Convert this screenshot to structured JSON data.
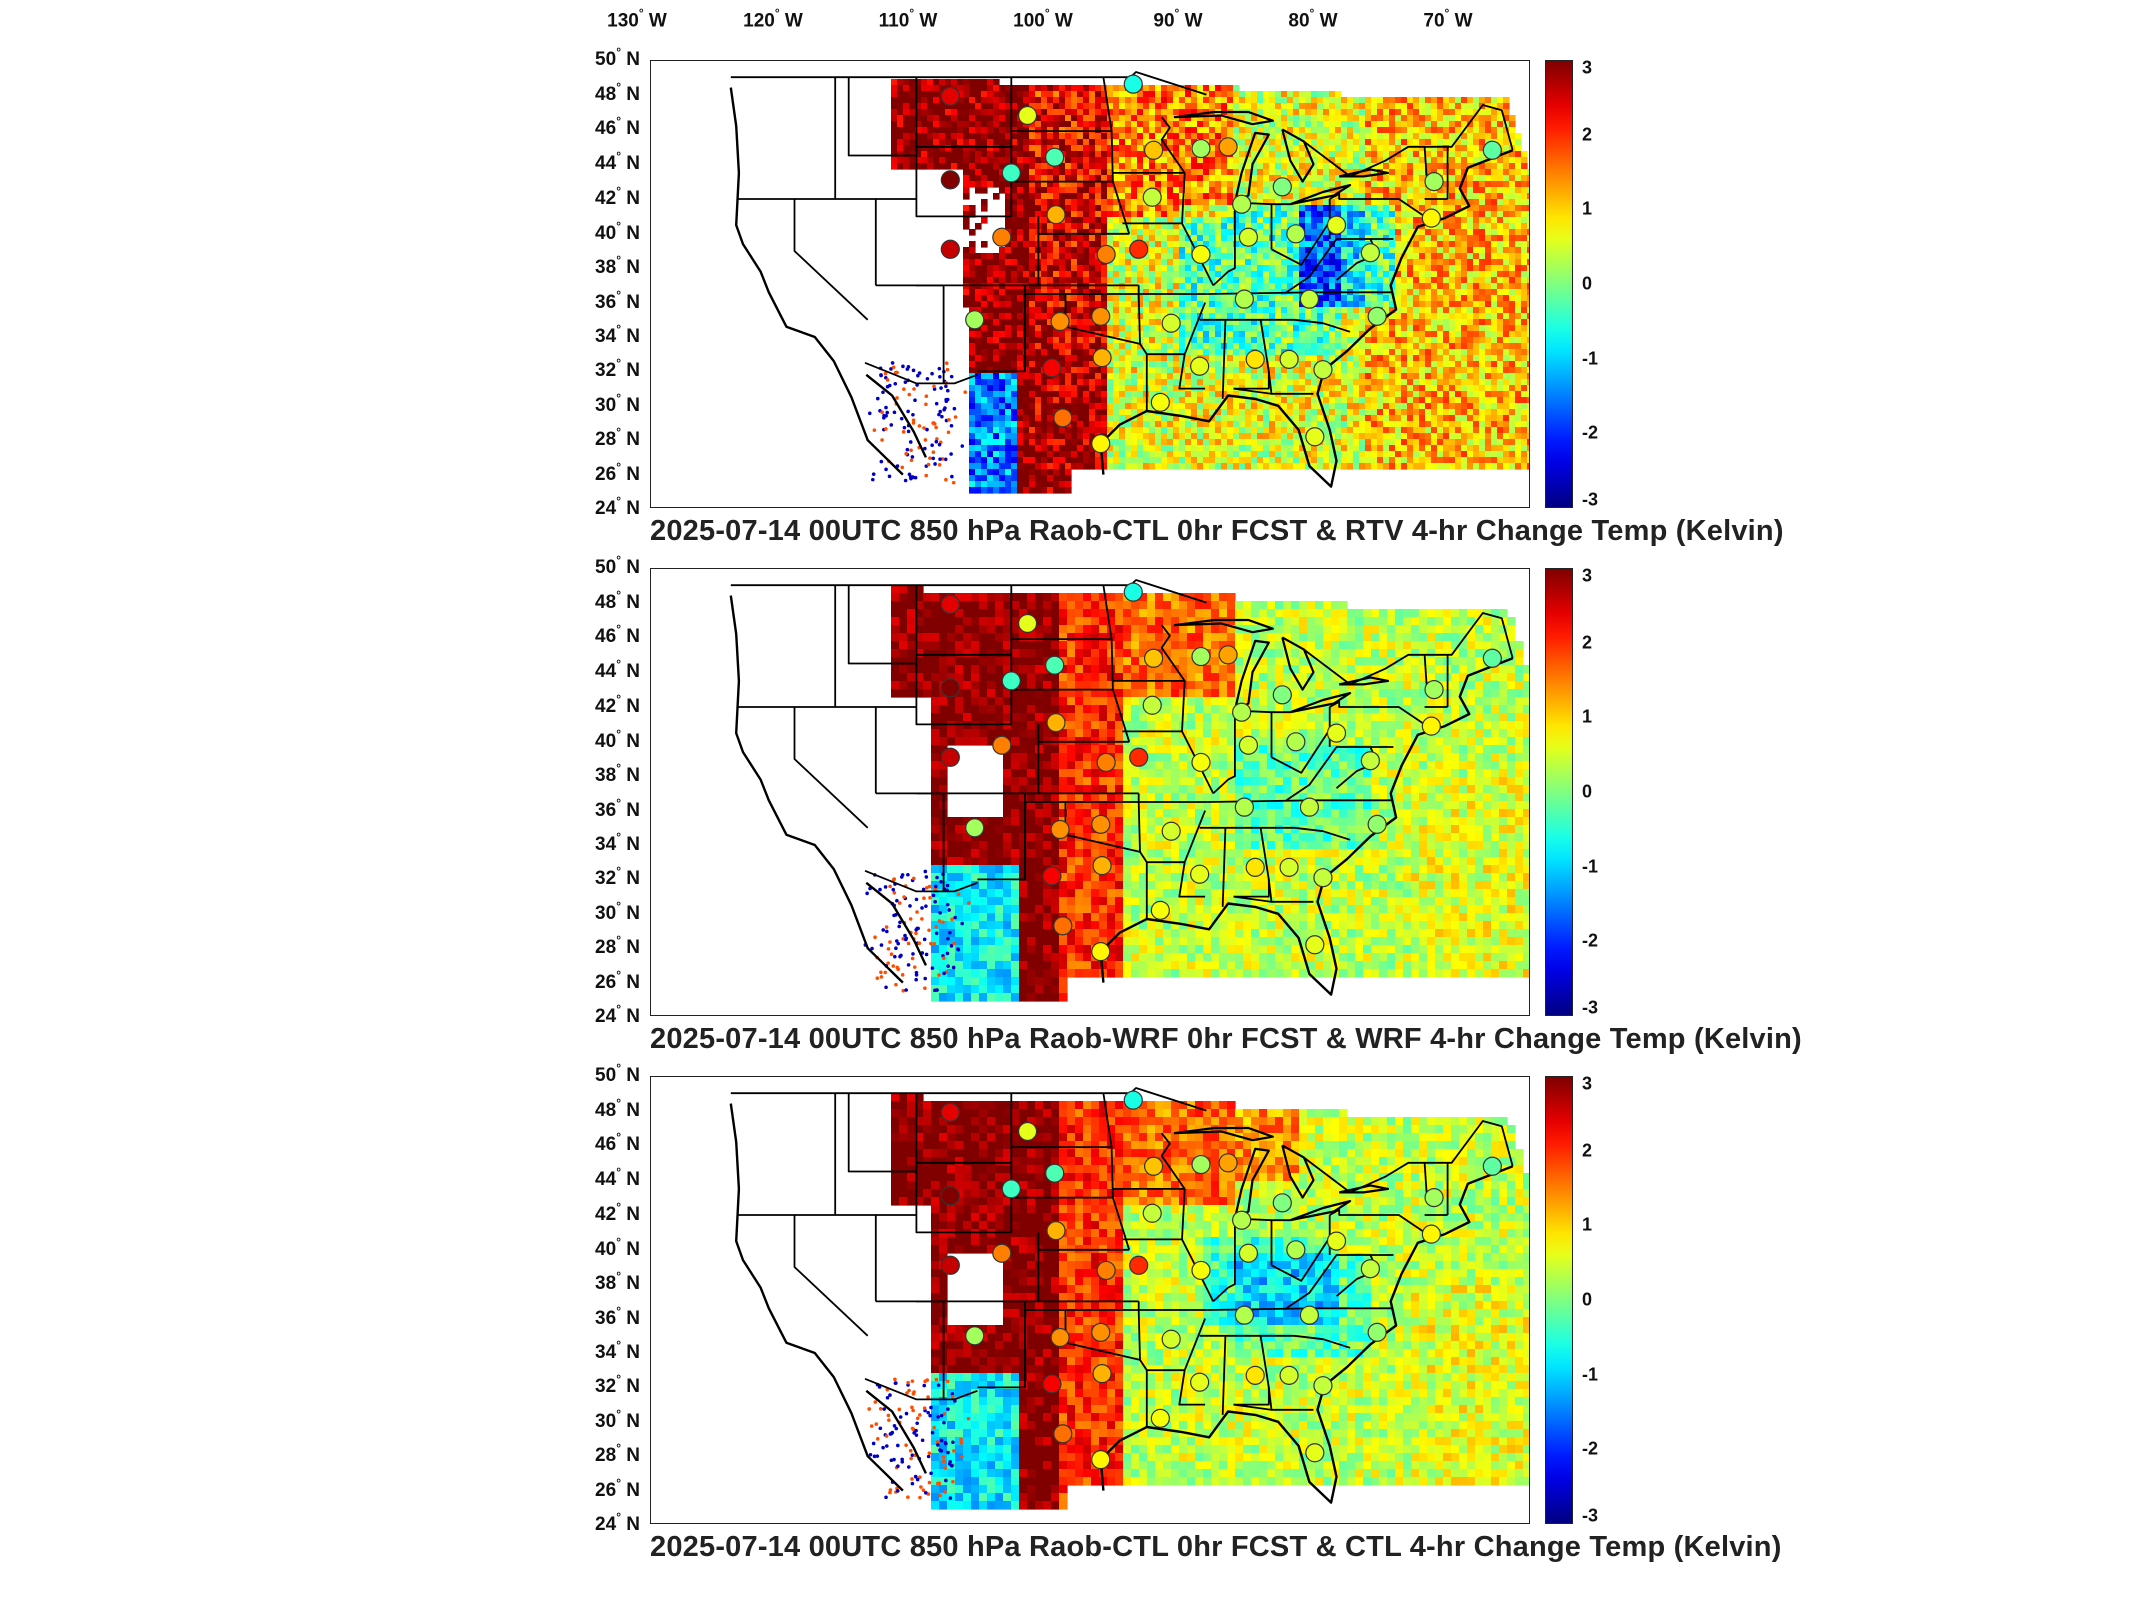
{
  "longitude_labels": [
    {
      "deg": "130",
      "hem": "W"
    },
    {
      "deg": "120",
      "hem": "W"
    },
    {
      "deg": "110",
      "hem": "W"
    },
    {
      "deg": "100",
      "hem": "W"
    },
    {
      "deg": "90",
      "hem": "W"
    },
    {
      "deg": "80",
      "hem": "W"
    },
    {
      "deg": "70",
      "hem": "W"
    }
  ],
  "latitude_labels": [
    {
      "deg": "50",
      "hem": "N"
    },
    {
      "deg": "48",
      "hem": "N"
    },
    {
      "deg": "46",
      "hem": "N"
    },
    {
      "deg": "44",
      "hem": "N"
    },
    {
      "deg": "42",
      "hem": "N"
    },
    {
      "deg": "40",
      "hem": "N"
    },
    {
      "deg": "38",
      "hem": "N"
    },
    {
      "deg": "36",
      "hem": "N"
    },
    {
      "deg": "34",
      "hem": "N"
    },
    {
      "deg": "32",
      "hem": "N"
    },
    {
      "deg": "30",
      "hem": "N"
    },
    {
      "deg": "28",
      "hem": "N"
    },
    {
      "deg": "26",
      "hem": "N"
    },
    {
      "deg": "24",
      "hem": "N"
    }
  ],
  "colorbar": {
    "min": -3,
    "max": 3,
    "ticks": [
      "3",
      "2",
      "1",
      "0",
      "-1",
      "-2",
      "-3"
    ],
    "colormap": "jet"
  },
  "panels": [
    {
      "title": "2025-07-14 00UTC 850 hPa Raob-CTL 0hr FCST & RTV 4-hr Change Temp (Kelvin)"
    },
    {
      "title": "2025-07-14 00UTC 850 hPa Raob-WRF 0hr FCST & WRF 4-hr Change Temp (Kelvin)"
    },
    {
      "title": "2025-07-14 00UTC 850 hPa Raob-CTL 0hr FCST & CTL 4-hr Change Temp (Kelvin)"
    }
  ],
  "stations": [
    {
      "lon": -108.5,
      "lat": 47.9,
      "values": [
        2.4,
        2.4,
        2.4
      ]
    },
    {
      "lon": -102.8,
      "lat": 46.8,
      "values": [
        0.6,
        0.6,
        0.6
      ]
    },
    {
      "lon": -100.8,
      "lat": 44.4,
      "values": [
        -0.3,
        -0.3,
        -0.3
      ]
    },
    {
      "lon": -104.0,
      "lat": 43.5,
      "values": [
        -0.4,
        -0.4,
        -0.4
      ]
    },
    {
      "lon": -108.5,
      "lat": 43.1,
      "values": [
        3.0,
        3.0,
        3.0
      ]
    },
    {
      "lon": -93.5,
      "lat": 44.8,
      "values": [
        1.1,
        1.1,
        1.1
      ]
    },
    {
      "lon": -88.0,
      "lat": 45.0,
      "values": [
        1.3,
        1.3,
        1.3
      ]
    },
    {
      "lon": -95.0,
      "lat": 48.6,
      "values": [
        -0.6,
        -0.6,
        -0.6
      ]
    },
    {
      "lon": -90.0,
      "lat": 44.9,
      "values": [
        0.2,
        0.2,
        0.2
      ]
    },
    {
      "lon": -84.0,
      "lat": 42.7,
      "values": [
        0.0,
        0.0,
        0.0
      ]
    },
    {
      "lon": -87.0,
      "lat": 41.7,
      "values": [
        0.3,
        0.3,
        0.3
      ]
    },
    {
      "lon": -93.6,
      "lat": 42.1,
      "values": [
        0.4,
        0.4,
        0.4
      ]
    },
    {
      "lon": -108.5,
      "lat": 39.1,
      "values": [
        2.6,
        2.6,
        2.6
      ]
    },
    {
      "lon": -104.7,
      "lat": 39.8,
      "values": [
        1.5,
        1.5,
        1.5
      ]
    },
    {
      "lon": -100.7,
      "lat": 41.1,
      "values": [
        1.2,
        1.2,
        1.2
      ]
    },
    {
      "lon": -97.0,
      "lat": 38.8,
      "values": [
        1.5,
        1.5,
        1.5
      ]
    },
    {
      "lon": -94.6,
      "lat": 39.1,
      "values": [
        2.0,
        2.0,
        2.0
      ]
    },
    {
      "lon": -90.0,
      "lat": 38.8,
      "values": [
        0.7,
        0.7,
        0.7
      ]
    },
    {
      "lon": -86.5,
      "lat": 39.8,
      "values": [
        0.5,
        0.5,
        0.5
      ]
    },
    {
      "lon": -83.0,
      "lat": 40.0,
      "values": [
        0.3,
        0.3,
        0.3
      ]
    },
    {
      "lon": -80.0,
      "lat": 40.5,
      "values": [
        0.6,
        0.6,
        0.6
      ]
    },
    {
      "lon": -77.5,
      "lat": 38.9,
      "values": [
        0.4,
        0.4,
        0.4
      ]
    },
    {
      "lon": -73.0,
      "lat": 40.9,
      "values": [
        0.8,
        0.8,
        0.8
      ]
    },
    {
      "lon": -72.8,
      "lat": 43.0,
      "values": [
        0.2,
        0.2,
        0.2
      ]
    },
    {
      "lon": -68.5,
      "lat": 44.8,
      "values": [
        -0.2,
        -0.2,
        -0.2
      ]
    },
    {
      "lon": -100.4,
      "lat": 34.9,
      "values": [
        1.4,
        1.4,
        1.4
      ]
    },
    {
      "lon": -97.4,
      "lat": 35.2,
      "values": [
        1.4,
        1.4,
        1.4
      ]
    },
    {
      "lon": -106.7,
      "lat": 35.0,
      "values": [
        0.2,
        0.2,
        0.2
      ]
    },
    {
      "lon": -101.0,
      "lat": 32.2,
      "values": [
        2.3,
        2.3,
        2.3
      ]
    },
    {
      "lon": -97.3,
      "lat": 32.8,
      "values": [
        1.2,
        1.2,
        1.2
      ]
    },
    {
      "lon": -92.2,
      "lat": 34.8,
      "values": [
        0.5,
        0.5,
        0.5
      ]
    },
    {
      "lon": -86.8,
      "lat": 36.2,
      "values": [
        0.3,
        0.3,
        0.3
      ]
    },
    {
      "lon": -82.0,
      "lat": 36.2,
      "values": [
        0.4,
        0.4,
        0.4
      ]
    },
    {
      "lon": -90.1,
      "lat": 32.3,
      "values": [
        0.6,
        0.6,
        0.6
      ]
    },
    {
      "lon": -86.0,
      "lat": 32.7,
      "values": [
        0.9,
        0.9,
        0.9
      ]
    },
    {
      "lon": -83.5,
      "lat": 32.7,
      "values": [
        0.5,
        0.5,
        0.5
      ]
    },
    {
      "lon": -81.0,
      "lat": 32.1,
      "values": [
        0.4,
        0.4,
        0.4
      ]
    },
    {
      "lon": -77.0,
      "lat": 35.2,
      "values": [
        0.1,
        0.1,
        0.1
      ]
    },
    {
      "lon": -97.4,
      "lat": 27.8,
      "values": [
        0.8,
        0.8,
        0.8
      ]
    },
    {
      "lon": -81.6,
      "lat": 28.2,
      "values": [
        0.6,
        0.6,
        0.6
      ]
    },
    {
      "lon": -93.0,
      "lat": 30.2,
      "values": [
        0.7,
        0.7,
        0.7
      ]
    },
    {
      "lon": -100.2,
      "lat": 29.3,
      "values": [
        1.6,
        1.6,
        1.6
      ]
    }
  ]
}
